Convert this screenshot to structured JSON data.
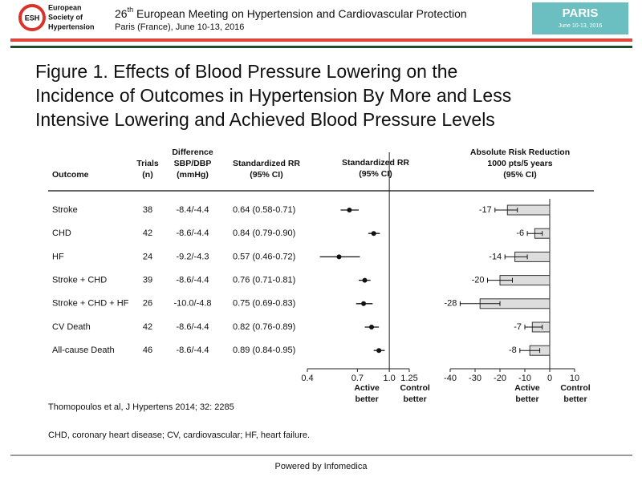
{
  "header": {
    "logo_abbr": "ESH",
    "logo_lines": [
      "European",
      "Society of",
      "Hypertension"
    ],
    "meeting_number": "26",
    "meeting_suffix": "th",
    "meeting_rest": " European Meeting on Hypertension and Cardiovascular Protection",
    "location": "Paris (France), June 10-13, 2016",
    "badge": "PARIS",
    "badge_sub": "June 10-13, 2016"
  },
  "title_lines": [
    "Figure 1. Effects of Blood Pressure Lowering on the",
    "Incidence of Outcomes in Hypertension By More and Less",
    "Intensive Lowering and Achieved Blood Pressure Levels"
  ],
  "table": {
    "headers": [
      [
        "Outcome"
      ],
      [
        "Trials",
        "(n)"
      ],
      [
        "Difference",
        "SBP/DBP",
        "(mmHg)"
      ],
      [
        "Standardized RR",
        "(95% CI)"
      ],
      [
        "Standardized RR",
        "(95% CI)"
      ],
      [
        "Absolute Risk Reduction",
        "1000 pts/5 years",
        "(95% CI)"
      ]
    ],
    "rows": [
      {
        "outcome": "Stroke",
        "trials": "38",
        "difference": "-8.4/-4.4",
        "rr_text": "0.64 (0.58-0.71)",
        "rr": 0.64,
        "rr_ci": [
          0.58,
          0.71
        ],
        "arr": -17,
        "arr_ci": [
          -22,
          -13
        ]
      },
      {
        "outcome": "CHD",
        "trials": "42",
        "difference": "-8.6/-4.4",
        "rr_text": "0.84 (0.79-0.90)",
        "rr": 0.84,
        "rr_ci": [
          0.79,
          0.9
        ],
        "arr": -6,
        "arr_ci": [
          -9,
          -3
        ]
      },
      {
        "outcome": "HF",
        "trials": "24",
        "difference": "-9.2/-4.3",
        "rr_text": "0.57 (0.46-0.72)",
        "rr": 0.57,
        "rr_ci": [
          0.46,
          0.72
        ],
        "arr": -14,
        "arr_ci": [
          -18,
          -9
        ]
      },
      {
        "outcome": "Stroke + CHD",
        "trials": "39",
        "difference": "-8.6/-4.4",
        "rr_text": "0.76 (0.71-0.81)",
        "rr": 0.76,
        "rr_ci": [
          0.71,
          0.81
        ],
        "arr": -20,
        "arr_ci": [
          -25,
          -15
        ]
      },
      {
        "outcome": "Stroke + CHD + HF",
        "trials": "26",
        "difference": "-10.0/-4.8",
        "rr_text": "0.75 (0.69-0.83)",
        "rr": 0.75,
        "rr_ci": [
          0.69,
          0.83
        ],
        "arr": -28,
        "arr_ci": [
          -36,
          -20
        ]
      },
      {
        "outcome": "CV Death",
        "trials": "42",
        "difference": "-8.6/-4.4",
        "rr_text": "0.82 (0.76-0.89)",
        "rr": 0.82,
        "rr_ci": [
          0.76,
          0.89
        ],
        "arr": -7,
        "arr_ci": [
          -10,
          -3
        ]
      },
      {
        "outcome": "All-cause Death",
        "trials": "46",
        "difference": "-8.6/-4.4",
        "rr_text": "0.89 (0.84-0.95)",
        "rr": 0.89,
        "rr_ci": [
          0.84,
          0.95
        ],
        "arr": -8,
        "arr_ci": [
          -12,
          -4
        ]
      }
    ],
    "rr_axis": {
      "xlim": [
        0.4,
        1.25
      ],
      "log": true,
      "xticks": [
        0.4,
        0.7,
        {
          "value": 1,
          "label": "1.0"
        },
        1.25
      ],
      "reference": 1,
      "left_label": [
        "Active",
        "better"
      ],
      "right_label": [
        "Control",
        "better"
      ]
    },
    "arr_axis": {
      "xlim": [
        -40,
        10
      ],
      "xticks": [
        -40,
        -30,
        -20,
        -10,
        0,
        10
      ],
      "reference": 0,
      "left_label": [
        "Active",
        "better"
      ],
      "right_label": [
        "Control",
        "better"
      ]
    }
  },
  "citation": "Thomopoulos et al,  J Hypertens 2014; 32: 2285",
  "abbreviations": "CHD, coronary heart disease; CV, cardiovascular; HF, heart failure.",
  "footer": "Powered by Infomedica"
}
